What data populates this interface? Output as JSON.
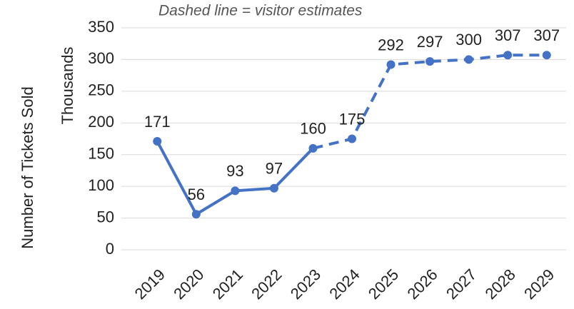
{
  "chart_data": {
    "type": "line",
    "annotation": "Dashed line = visitor estimates",
    "ylabel": "Number of Tickets Sold",
    "yunit": "Thousands",
    "categories": [
      "2019",
      "2020",
      "2021",
      "2022",
      "2023",
      "2024",
      "2025",
      "2026",
      "2027",
      "2028",
      "2029"
    ],
    "values": [
      171,
      56,
      93,
      97,
      160,
      175,
      292,
      297,
      300,
      307,
      307
    ],
    "estimate_from": "2023",
    "color": "#4472c4",
    "ylim": [
      0,
      350
    ],
    "yticks": [
      0,
      50,
      100,
      150,
      200,
      250,
      300,
      350
    ],
    "grid": true
  }
}
